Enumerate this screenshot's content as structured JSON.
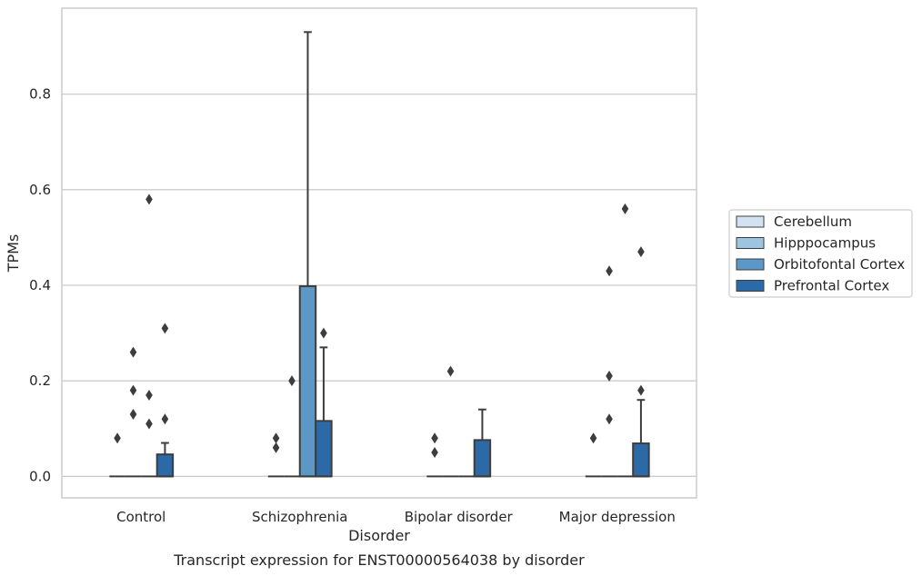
{
  "caption": "Transcript expression for ENST00000564038 by disorder",
  "chart_data": {
    "type": "box",
    "xlabel": "Disorder",
    "ylabel": "TPMs",
    "ylim": [
      -0.045,
      0.98
    ],
    "yticks": [
      0.0,
      0.2,
      0.4,
      0.6,
      0.8
    ],
    "ytick_labels": [
      "0.0",
      "0.2",
      "0.4",
      "0.6",
      "0.8"
    ],
    "grid": "horizontal",
    "legend_position": "right",
    "categories": [
      "Control",
      "Schizophrenia",
      "Bipolar disorder",
      "Major depression"
    ],
    "series": [
      {
        "name": "Cerebellum",
        "color": "#d2e2f2",
        "boxes": [
          {
            "q1": 0,
            "median": 0,
            "q3": 0,
            "whisker_low": 0,
            "whisker_high": 0,
            "outliers": [
              0.08
            ]
          },
          {
            "q1": 0,
            "median": 0,
            "q3": 0,
            "whisker_low": 0,
            "whisker_high": 0,
            "outliers": [
              0.08,
              0.06
            ]
          },
          {
            "q1": 0,
            "median": 0,
            "q3": 0,
            "whisker_low": 0,
            "whisker_high": 0,
            "outliers": [
              0.08,
              0.05
            ]
          },
          {
            "q1": 0,
            "median": 0,
            "q3": 0,
            "whisker_low": 0,
            "whisker_high": 0,
            "outliers": [
              0.08
            ]
          }
        ]
      },
      {
        "name": "Hipppocampus",
        "color": "#9dc5df",
        "boxes": [
          {
            "q1": 0,
            "median": 0,
            "q3": 0,
            "whisker_low": 0,
            "whisker_high": 0,
            "outliers": [
              0.26,
              0.18,
              0.13
            ]
          },
          {
            "q1": 0,
            "median": 0,
            "q3": 0,
            "whisker_low": 0,
            "whisker_high": 0,
            "outliers": [
              0.2
            ]
          },
          {
            "q1": 0,
            "median": 0,
            "q3": 0,
            "whisker_low": 0,
            "whisker_high": 0,
            "outliers": [
              0.22
            ]
          },
          {
            "q1": 0,
            "median": 0,
            "q3": 0,
            "whisker_low": 0,
            "whisker_high": 0,
            "outliers": [
              0.43,
              0.21,
              0.12
            ]
          }
        ]
      },
      {
        "name": "Orbitofontal Cortex",
        "color": "#5b98c7",
        "boxes": [
          {
            "q1": 0,
            "median": 0,
            "q3": 0,
            "whisker_low": 0,
            "whisker_high": 0,
            "outliers": [
              0.58,
              0.17,
              0.11
            ]
          },
          {
            "q1": 0,
            "median": 0,
            "q3": 0.398,
            "whisker_low": 0,
            "whisker_high": 0.93,
            "outliers": []
          },
          {
            "q1": 0,
            "median": 0,
            "q3": 0,
            "whisker_low": 0,
            "whisker_high": 0,
            "outliers": []
          },
          {
            "q1": 0,
            "median": 0,
            "q3": 0,
            "whisker_low": 0,
            "whisker_high": 0,
            "outliers": [
              0.56
            ]
          }
        ]
      },
      {
        "name": "Prefrontal Cortex",
        "color": "#2c6aa7",
        "boxes": [
          {
            "q1": 0,
            "median": 0,
            "q3": 0.046,
            "whisker_low": 0,
            "whisker_high": 0.07,
            "outliers": [
              0.31,
              0.12
            ]
          },
          {
            "q1": 0,
            "median": 0,
            "q3": 0.116,
            "whisker_low": 0,
            "whisker_high": 0.27,
            "outliers": [
              0.3
            ]
          },
          {
            "q1": 0,
            "median": 0,
            "q3": 0.076,
            "whisker_low": 0,
            "whisker_high": 0.14,
            "outliers": []
          },
          {
            "q1": 0,
            "median": 0,
            "q3": 0.069,
            "whisker_low": 0,
            "whisker_high": 0.16,
            "outliers": [
              0.47,
              0.18
            ]
          }
        ]
      }
    ]
  }
}
